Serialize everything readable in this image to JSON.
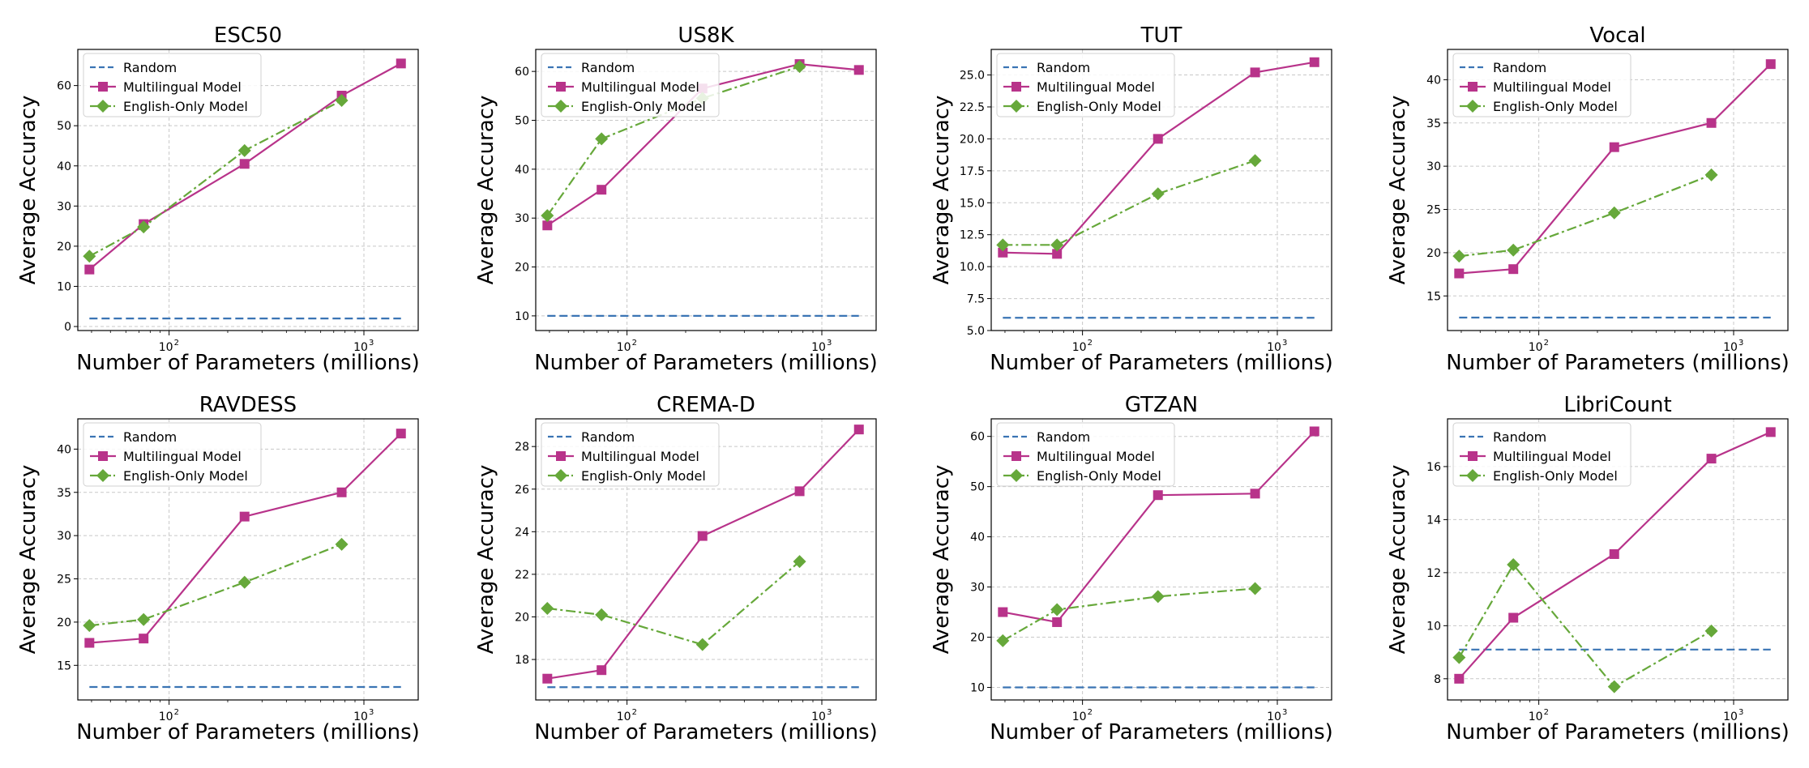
{
  "chart_data": [
    {
      "type": "line",
      "title": "ESC50",
      "xlabel": "Number of Parameters (millions)",
      "ylabel": "Average Accuracy",
      "xscale": "log",
      "xlim": [
        34,
        1900
      ],
      "ylim": [
        -1,
        69
      ],
      "yticks": [
        0,
        10,
        20,
        30,
        40,
        50,
        60
      ],
      "xticks": [
        {
          "value": 100,
          "label": "10",
          "exp": "2"
        },
        {
          "value": 1000,
          "label": "10",
          "exp": "3"
        }
      ],
      "grid": true,
      "legend_position": "top-left",
      "series": [
        {
          "name": "Random",
          "style": "dashed",
          "color": "#3a74b4",
          "x": [
            39,
            1550
          ],
          "values": [
            2,
            2
          ]
        },
        {
          "name": "Multilingual Model",
          "style": "solid",
          "marker": "square",
          "color": "#b8338a",
          "x": [
            39,
            74,
            244,
            769,
            1550
          ],
          "values": [
            14.2,
            25.5,
            40.5,
            57.5,
            65.5
          ]
        },
        {
          "name": "English-Only Model",
          "style": "dashdot",
          "marker": "diamond",
          "color": "#66a83a",
          "x": [
            39,
            74,
            244,
            769
          ],
          "values": [
            17.5,
            24.8,
            43.8,
            56.3
          ]
        }
      ]
    },
    {
      "type": "line",
      "title": "US8K",
      "xlabel": "Number of Parameters (millions)",
      "ylabel": "Average Accuracy",
      "xscale": "log",
      "xlim": [
        34,
        1900
      ],
      "ylim": [
        7,
        64.5
      ],
      "yticks": [
        10,
        20,
        30,
        40,
        50,
        60
      ],
      "xticks": [
        {
          "value": 100,
          "label": "10",
          "exp": "2"
        },
        {
          "value": 1000,
          "label": "10",
          "exp": "3"
        }
      ],
      "grid": true,
      "legend_position": "top-left",
      "series": [
        {
          "name": "Random",
          "style": "dashed",
          "color": "#3a74b4",
          "x": [
            39,
            1550
          ],
          "values": [
            10,
            10
          ]
        },
        {
          "name": "Multilingual Model",
          "style": "solid",
          "marker": "square",
          "color": "#b8338a",
          "x": [
            39,
            74,
            244,
            769,
            1550
          ],
          "values": [
            28.5,
            35.8,
            56.5,
            61.5,
            60.3
          ]
        },
        {
          "name": "English-Only Model",
          "style": "dashdot",
          "marker": "diamond",
          "color": "#66a83a",
          "x": [
            39,
            74,
            244,
            769
          ],
          "values": [
            30.5,
            46.2,
            54.5,
            61
          ]
        }
      ]
    },
    {
      "type": "line",
      "title": "TUT",
      "xlabel": "Number of Parameters (millions)",
      "ylabel": "Average Accuracy",
      "xscale": "log",
      "xlim": [
        34,
        1900
      ],
      "ylim": [
        5,
        27
      ],
      "yticks": [
        5.0,
        7.5,
        10.0,
        12.5,
        15.0,
        17.5,
        20.0,
        22.5,
        25.0
      ],
      "ytick_labels": [
        "5.0",
        "7.5",
        "10.0",
        "12.5",
        "15.0",
        "17.5",
        "20.0",
        "22.5",
        "25.0"
      ],
      "xticks": [
        {
          "value": 100,
          "label": "10",
          "exp": "2"
        },
        {
          "value": 1000,
          "label": "10",
          "exp": "3"
        }
      ],
      "grid": true,
      "legend_position": "top-left",
      "series": [
        {
          "name": "Random",
          "style": "dashed",
          "color": "#3a74b4",
          "x": [
            39,
            1550
          ],
          "values": [
            6,
            6
          ]
        },
        {
          "name": "Multilingual Model",
          "style": "solid",
          "marker": "square",
          "color": "#b8338a",
          "x": [
            39,
            74,
            244,
            769,
            1550
          ],
          "values": [
            11.1,
            11.0,
            20.0,
            25.2,
            26.0
          ]
        },
        {
          "name": "English-Only Model",
          "style": "dashdot",
          "marker": "diamond",
          "color": "#66a83a",
          "x": [
            39,
            74,
            244,
            769
          ],
          "values": [
            11.7,
            11.7,
            15.7,
            18.3
          ]
        }
      ]
    },
    {
      "type": "line",
      "title": "Vocal",
      "xlabel": "Number of Parameters (millions)",
      "ylabel": "Average Accuracy",
      "xscale": "log",
      "xlim": [
        34,
        1900
      ],
      "ylim": [
        11,
        43.5
      ],
      "yticks": [
        15,
        20,
        25,
        30,
        35,
        40
      ],
      "xticks": [
        {
          "value": 100,
          "label": "10",
          "exp": "2"
        },
        {
          "value": 1000,
          "label": "10",
          "exp": "3"
        }
      ],
      "grid": true,
      "legend_position": "top-left",
      "series": [
        {
          "name": "Random",
          "style": "dashed",
          "color": "#3a74b4",
          "x": [
            39,
            1550
          ],
          "values": [
            12.5,
            12.5
          ]
        },
        {
          "name": "Multilingual Model",
          "style": "solid",
          "marker": "square",
          "color": "#b8338a",
          "x": [
            39,
            74,
            244,
            769,
            1550
          ],
          "values": [
            17.6,
            18.1,
            32.2,
            35.0,
            41.8
          ]
        },
        {
          "name": "English-Only Model",
          "style": "dashdot",
          "marker": "diamond",
          "color": "#66a83a",
          "x": [
            39,
            74,
            244,
            769
          ],
          "values": [
            19.6,
            20.3,
            24.6,
            29.0
          ]
        }
      ]
    },
    {
      "type": "line",
      "title": "RAVDESS",
      "xlabel": "Number of Parameters (millions)",
      "ylabel": "Average Accuracy",
      "xscale": "log",
      "xlim": [
        34,
        1900
      ],
      "ylim": [
        11,
        43.5
      ],
      "yticks": [
        15,
        20,
        25,
        30,
        35,
        40
      ],
      "xticks": [
        {
          "value": 100,
          "label": "10",
          "exp": "2"
        },
        {
          "value": 1000,
          "label": "10",
          "exp": "3"
        }
      ],
      "grid": true,
      "legend_position": "top-left",
      "series": [
        {
          "name": "Random",
          "style": "dashed",
          "color": "#3a74b4",
          "x": [
            39,
            1550
          ],
          "values": [
            12.5,
            12.5
          ]
        },
        {
          "name": "Multilingual Model",
          "style": "solid",
          "marker": "square",
          "color": "#b8338a",
          "x": [
            39,
            74,
            244,
            769,
            1550
          ],
          "values": [
            17.6,
            18.1,
            32.2,
            35.0,
            41.8
          ]
        },
        {
          "name": "English-Only Model",
          "style": "dashdot",
          "marker": "diamond",
          "color": "#66a83a",
          "x": [
            39,
            74,
            244,
            769
          ],
          "values": [
            19.6,
            20.3,
            24.6,
            29.0
          ]
        }
      ]
    },
    {
      "type": "line",
      "title": "CREMA-D",
      "xlabel": "Number of Parameters (millions)",
      "ylabel": "Average Accuracy",
      "xscale": "log",
      "xlim": [
        34,
        1900
      ],
      "ylim": [
        16.1,
        29.3
      ],
      "yticks": [
        18,
        20,
        22,
        24,
        26,
        28
      ],
      "xticks": [
        {
          "value": 100,
          "label": "10",
          "exp": "2"
        },
        {
          "value": 1000,
          "label": "10",
          "exp": "3"
        }
      ],
      "grid": true,
      "legend_position": "top-left",
      "series": [
        {
          "name": "Random",
          "style": "dashed",
          "color": "#3a74b4",
          "x": [
            39,
            1550
          ],
          "values": [
            16.7,
            16.7
          ]
        },
        {
          "name": "Multilingual Model",
          "style": "solid",
          "marker": "square",
          "color": "#b8338a",
          "x": [
            39,
            74,
            244,
            769,
            1550
          ],
          "values": [
            17.1,
            17.5,
            23.8,
            25.9,
            28.8
          ]
        },
        {
          "name": "English-Only Model",
          "style": "dashdot",
          "marker": "diamond",
          "color": "#66a83a",
          "x": [
            39,
            74,
            244,
            769
          ],
          "values": [
            20.4,
            20.1,
            18.7,
            22.6
          ]
        }
      ]
    },
    {
      "type": "line",
      "title": "GTZAN",
      "xlabel": "Number of Parameters (millions)",
      "ylabel": "Average Accuracy",
      "xscale": "log",
      "xlim": [
        34,
        1900
      ],
      "ylim": [
        7.5,
        63.5
      ],
      "yticks": [
        10,
        20,
        30,
        40,
        50,
        60
      ],
      "xticks": [
        {
          "value": 100,
          "label": "10",
          "exp": "2"
        },
        {
          "value": 1000,
          "label": "10",
          "exp": "3"
        }
      ],
      "grid": true,
      "legend_position": "top-left",
      "series": [
        {
          "name": "Random",
          "style": "dashed",
          "color": "#3a74b4",
          "x": [
            39,
            1550
          ],
          "values": [
            10,
            10
          ]
        },
        {
          "name": "Multilingual Model",
          "style": "solid",
          "marker": "square",
          "color": "#b8338a",
          "x": [
            39,
            74,
            244,
            769,
            1550
          ],
          "values": [
            25.0,
            23.0,
            48.3,
            48.6,
            61.0
          ]
        },
        {
          "name": "English-Only Model",
          "style": "dashdot",
          "marker": "diamond",
          "color": "#66a83a",
          "x": [
            39,
            74,
            244,
            769
          ],
          "values": [
            19.3,
            25.5,
            28.1,
            29.7
          ]
        }
      ]
    },
    {
      "type": "line",
      "title": "LibriCount",
      "xlabel": "Number of Parameters (millions)",
      "ylabel": "Average Accuracy",
      "xscale": "log",
      "xlim": [
        34,
        1900
      ],
      "ylim": [
        7.2,
        17.8
      ],
      "yticks": [
        8,
        10,
        12,
        14,
        16
      ],
      "xticks": [
        {
          "value": 100,
          "label": "10",
          "exp": "2"
        },
        {
          "value": 1000,
          "label": "10",
          "exp": "3"
        }
      ],
      "grid": true,
      "legend_position": "top-left",
      "series": [
        {
          "name": "Random",
          "style": "dashed",
          "color": "#3a74b4",
          "x": [
            39,
            1550
          ],
          "values": [
            9.1,
            9.1
          ]
        },
        {
          "name": "Multilingual Model",
          "style": "solid",
          "marker": "square",
          "color": "#b8338a",
          "x": [
            39,
            74,
            244,
            769,
            1550
          ],
          "values": [
            8.0,
            10.3,
            12.7,
            16.3,
            17.3
          ]
        },
        {
          "name": "English-Only Model",
          "style": "dashdot",
          "marker": "diamond",
          "color": "#66a83a",
          "x": [
            39,
            74,
            244,
            769
          ],
          "values": [
            8.8,
            12.3,
            7.7,
            9.8
          ]
        }
      ]
    }
  ]
}
